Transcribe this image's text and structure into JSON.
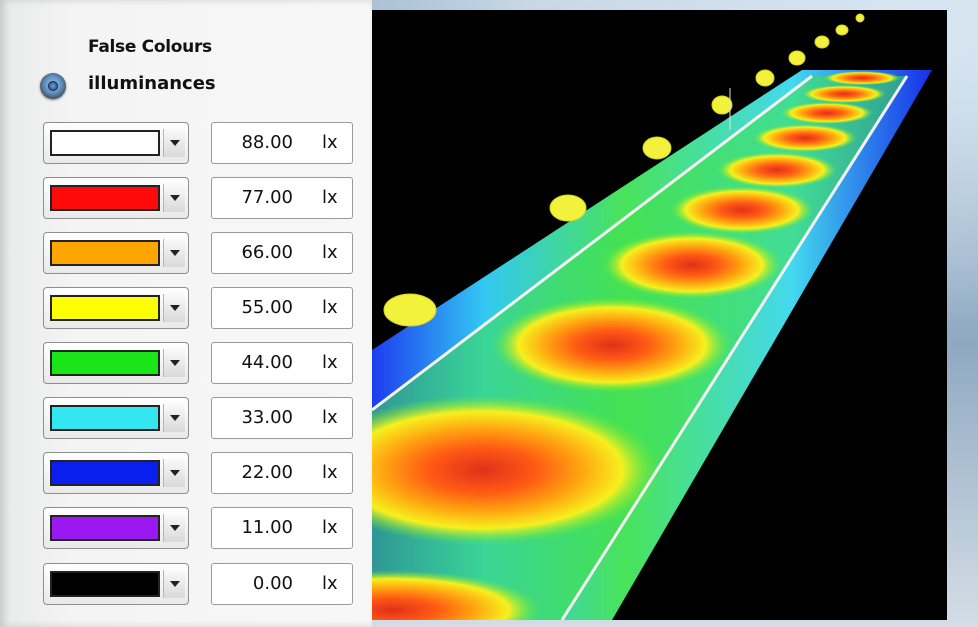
{
  "panel": {
    "title": "False Colours",
    "mode": {
      "label": "illuminances",
      "selected": true
    }
  },
  "legend": [
    {
      "color": "#ffffff",
      "value": "88.00",
      "unit": "lx"
    },
    {
      "color": "#ff0a0a",
      "value": "77.00",
      "unit": "lx"
    },
    {
      "color": "#ffa500",
      "value": "66.00",
      "unit": "lx"
    },
    {
      "color": "#ffff00",
      "value": "55.00",
      "unit": "lx"
    },
    {
      "color": "#19e519",
      "value": "44.00",
      "unit": "lx"
    },
    {
      "color": "#33e7f0",
      "value": "33.00",
      "unit": "lx"
    },
    {
      "color": "#0a1ef0",
      "value": "22.00",
      "unit": "lx"
    },
    {
      "color": "#9b19f0",
      "value": "11.00",
      "unit": "lx"
    },
    {
      "color": "#000000",
      "value": "0.00",
      "unit": "lx"
    }
  ],
  "scene": {
    "background": "#000000",
    "luminaire_color": "#f2f23c"
  }
}
